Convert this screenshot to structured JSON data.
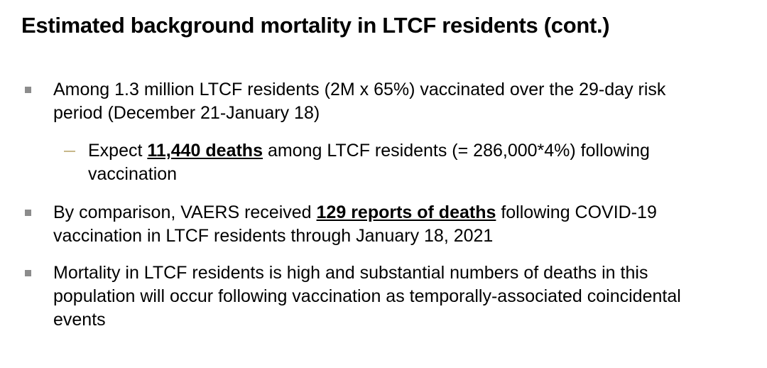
{
  "title": "Estimated background mortality in LTCF residents (cont.)",
  "bullets": [
    {
      "parts": [
        "Among 1.3 million LTCF residents (2M x 65%) vaccinated over the 29-day risk period (December 21-January 18)"
      ],
      "sub_bullets": [
        {
          "parts": [
            "Expect ",
            "11,440 deaths",
            " among LTCF residents (= 286,000*4%) following vaccination"
          ]
        }
      ]
    },
    {
      "parts": [
        "By comparison, VAERS received ",
        "129 reports of deaths",
        " following COVID-19 vaccination in LTCF residents through January 18, 2021"
      ]
    },
    {
      "parts": [
        "Mortality in LTCF residents is high and substantial numbers of deaths in this population will occur following vaccination as temporally-associated coincidental events"
      ]
    }
  ]
}
